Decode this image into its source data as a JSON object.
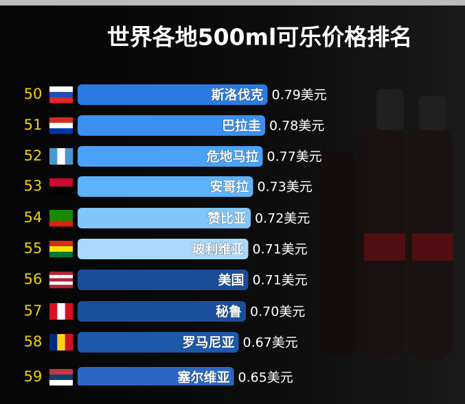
{
  "chart_data": {
    "type": "bar",
    "orientation": "horizontal",
    "title": "世界各地500ml可乐价格排名",
    "ranks": [
      "50",
      "51",
      "52",
      "53",
      "54",
      "55",
      "56",
      "57",
      "58",
      "59"
    ],
    "categories": [
      "斯洛伐克",
      "巴拉圭",
      "危地马拉",
      "安哥拉",
      "赞比亚",
      "玻利维亚",
      "美国",
      "秘鲁",
      "罗马尼亚",
      "塞尔维亚"
    ],
    "values": [
      0.79,
      0.78,
      0.77,
      0.73,
      0.72,
      0.71,
      0.71,
      0.7,
      0.67,
      0.65
    ],
    "value_labels": [
      "0.79美元",
      "0.78美元",
      "0.77美元",
      "0.73美元",
      "0.72美元",
      "0.71美元",
      "0.71美元",
      "0.70美元",
      "0.67美元",
      "0.65美元"
    ],
    "colors": [
      "#2b7be2",
      "#3a8ff0",
      "#4aa2f6",
      "#5cb3f9",
      "#80c6fb",
      "#a9d9fc",
      "#1a4c98",
      "#1a4f9c",
      "#1e58a8",
      "#2a67c2"
    ],
    "xlim": [
      0,
      1
    ]
  }
}
